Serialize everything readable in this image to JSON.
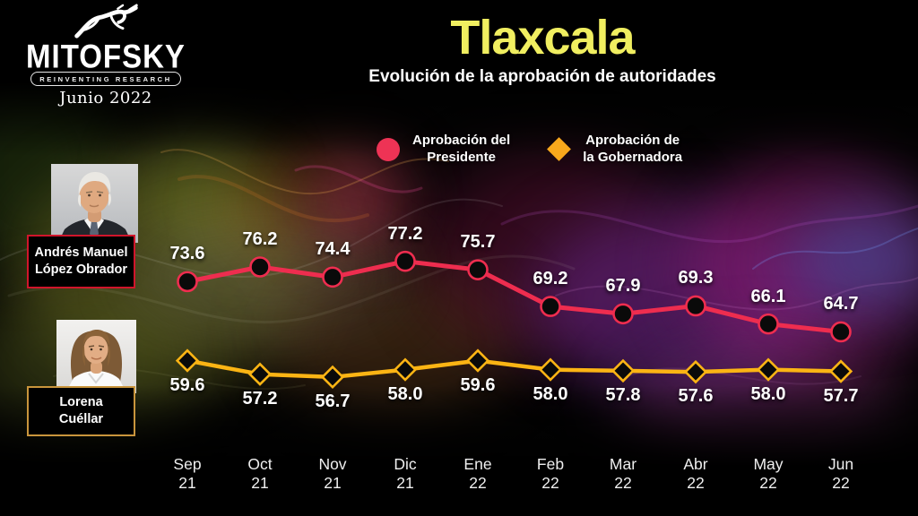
{
  "brand": {
    "logo_text": "MITOFSKY",
    "tagline": "REINVENTING RESEARCH",
    "date": "Junio 2022"
  },
  "header": {
    "title": "Tlaxcala",
    "subtitle": "Evolución de la aprobación de autoridades",
    "title_color": "#F0EE60"
  },
  "legend": [
    {
      "id": "presidente",
      "marker": "circle-icon",
      "color": "#EE2D4F",
      "line1": "Aprobación del",
      "line2": "Presidente"
    },
    {
      "id": "gobernadora",
      "marker": "diamond-icon",
      "color": "#F8A81C",
      "line1": "Aprobación de",
      "line2": "la Gobernadora"
    }
  ],
  "people": [
    {
      "id": "presidente",
      "line1": "Andrés Manuel",
      "line2": "López Obrador",
      "border_color": "#D1152B"
    },
    {
      "id": "gobernadora",
      "line1": "Lorena",
      "line2": "Cuéllar",
      "border_color": "#C9953C"
    }
  ],
  "chart_data": {
    "type": "line",
    "title": "Evolución de la aprobación de autoridades — Tlaxcala",
    "categories": [
      {
        "month": "Sep",
        "year": "21"
      },
      {
        "month": "Oct",
        "year": "21"
      },
      {
        "month": "Nov",
        "year": "21"
      },
      {
        "month": "Dic",
        "year": "21"
      },
      {
        "month": "Ene",
        "year": "22"
      },
      {
        "month": "Feb",
        "year": "22"
      },
      {
        "month": "Mar",
        "year": "22"
      },
      {
        "month": "Abr",
        "year": "22"
      },
      {
        "month": "May",
        "year": "22"
      },
      {
        "month": "Jun",
        "year": "22"
      }
    ],
    "series": [
      {
        "name": "Aprobación del Presidente",
        "color": "#EE2D4F",
        "marker": "circle",
        "label_position": "above",
        "values": [
          73.6,
          76.2,
          74.4,
          77.2,
          75.7,
          69.2,
          67.9,
          69.3,
          66.1,
          64.7
        ]
      },
      {
        "name": "Aprobación de la Gobernadora",
        "color": "#FBB414",
        "marker": "diamond",
        "label_position": "below",
        "values": [
          59.6,
          57.2,
          56.7,
          58.0,
          59.6,
          58.0,
          57.8,
          57.6,
          58.0,
          57.7
        ]
      }
    ],
    "ylim": [
      52,
      80
    ],
    "grid": false,
    "legend_position": "top-center",
    "data_labels": true
  }
}
